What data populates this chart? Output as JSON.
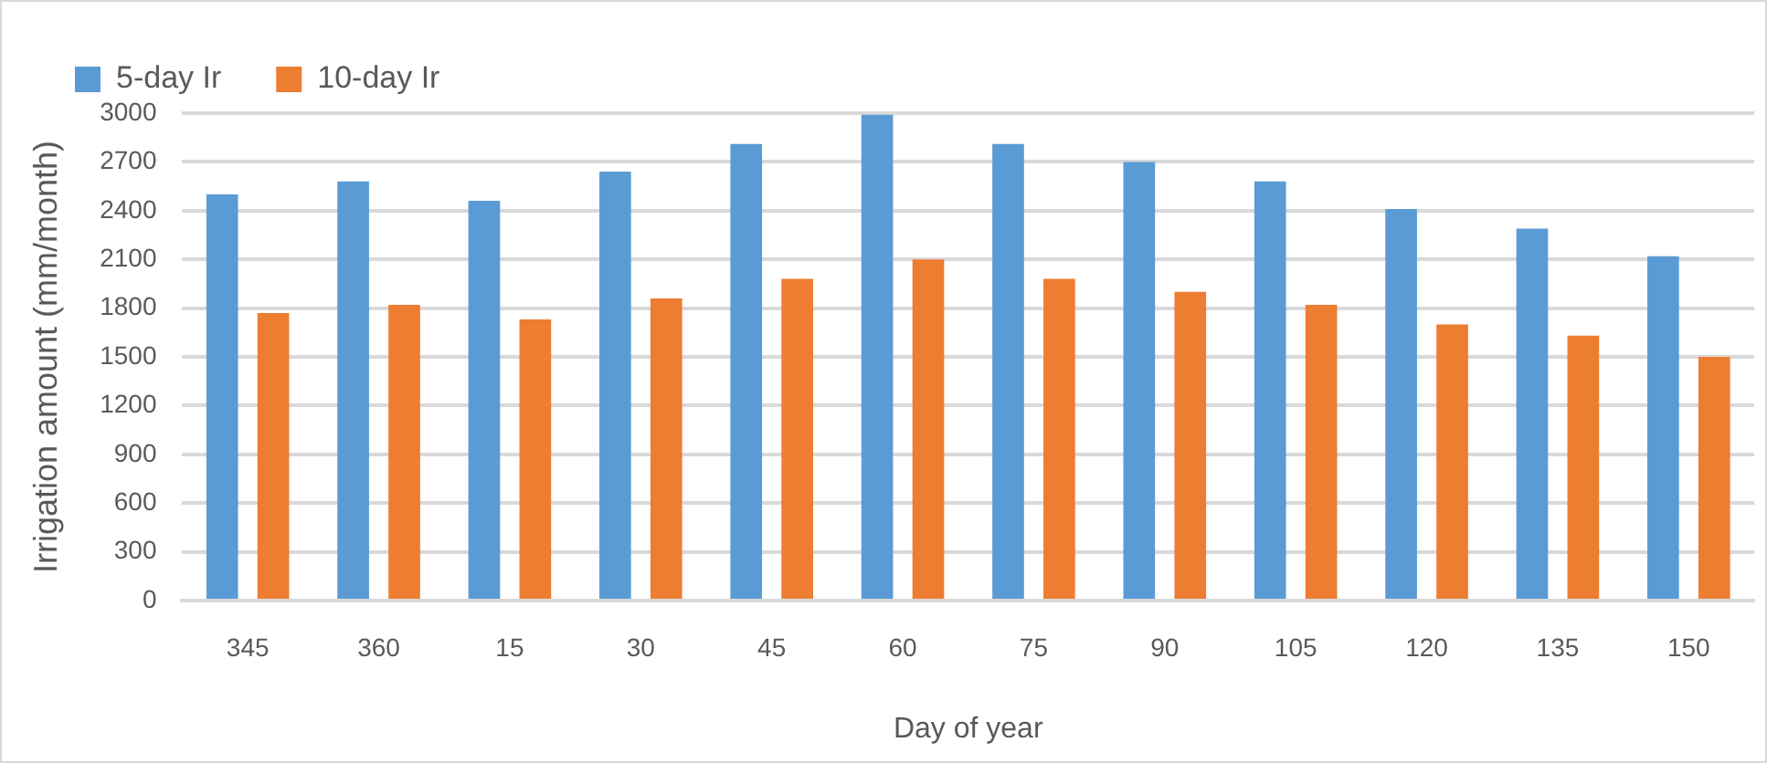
{
  "chart_data": {
    "type": "bar",
    "xlabel": "Day of year",
    "ylabel": "Irrigation amount (mm/month)",
    "categories": [
      "345",
      "360",
      "15",
      "30",
      "45",
      "60",
      "75",
      "90",
      "105",
      "120",
      "135",
      "150"
    ],
    "series": [
      {
        "name": "5-day Ir",
        "color": "#5b9bd5",
        "values": [
          2500,
          2580,
          2460,
          2640,
          2810,
          2990,
          2810,
          2700,
          2580,
          2410,
          2290,
          2120
        ]
      },
      {
        "name": "10-day Ir",
        "color": "#ed7d31",
        "values": [
          1770,
          1820,
          1730,
          1860,
          1980,
          2100,
          1980,
          1900,
          1820,
          1700,
          1630,
          1500
        ]
      }
    ],
    "ylim": [
      0,
      3000
    ],
    "yticks": [
      0,
      300,
      600,
      900,
      1200,
      1500,
      1800,
      2100,
      2400,
      2700,
      3000
    ],
    "grid": "y",
    "legend": "top left"
  }
}
